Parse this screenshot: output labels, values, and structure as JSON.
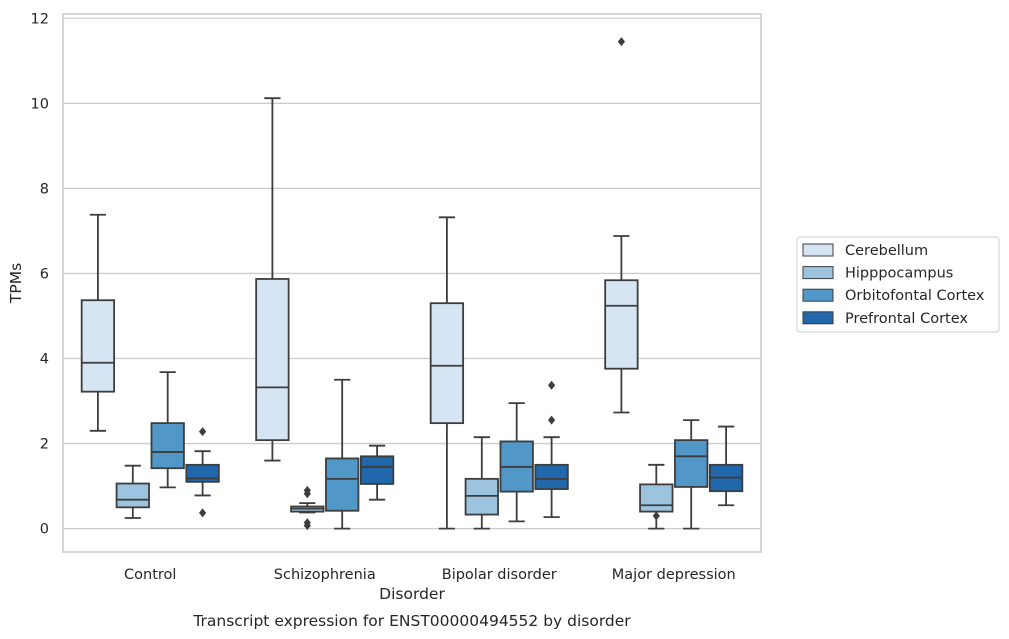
{
  "chart_data": {
    "type": "box",
    "caption": "Transcript expression for ENST00000494552 by disorder",
    "xlabel": "Disorder",
    "ylabel": "TPMs",
    "ylim": [
      -0.55,
      12.1
    ],
    "yticks": [
      0,
      2,
      4,
      6,
      8,
      10,
      12
    ],
    "grid": true,
    "legend_position": "right",
    "categories": [
      "Control",
      "Schizophrenia",
      "Bipolar disorder",
      "Major depression"
    ],
    "series": [
      {
        "name": "Cerebellum",
        "color": "#d6e5f4",
        "boxes": [
          {
            "whisker_low": 2.3,
            "q1": 3.22,
            "median": 3.9,
            "q3": 5.37,
            "whisker_high": 7.38,
            "outliers": []
          },
          {
            "whisker_low": 1.6,
            "q1": 2.08,
            "median": 3.32,
            "q3": 5.87,
            "whisker_high": 10.12,
            "outliers": []
          },
          {
            "whisker_low": 0.0,
            "q1": 2.48,
            "median": 3.83,
            "q3": 5.3,
            "whisker_high": 7.32,
            "outliers": []
          },
          {
            "whisker_low": 2.73,
            "q1": 3.76,
            "median": 5.24,
            "q3": 5.84,
            "whisker_high": 6.88,
            "outliers": [
              11.45
            ]
          }
        ]
      },
      {
        "name": "Hipppocampus",
        "color": "#9cc4de",
        "boxes": [
          {
            "whisker_low": 0.25,
            "q1": 0.5,
            "median": 0.68,
            "q3": 1.06,
            "whisker_high": 1.48,
            "outliers": []
          },
          {
            "whisker_low": 0.38,
            "q1": 0.4,
            "median": 0.47,
            "q3": 0.52,
            "whisker_high": 0.6,
            "outliers": [
              0.9,
              0.82,
              0.14,
              0.07
            ]
          },
          {
            "whisker_low": 0.0,
            "q1": 0.33,
            "median": 0.77,
            "q3": 1.17,
            "whisker_high": 2.15,
            "outliers": []
          },
          {
            "whisker_low": 0.0,
            "q1": 0.4,
            "median": 0.55,
            "q3": 1.04,
            "whisker_high": 1.5,
            "outliers": [
              0.3
            ]
          }
        ]
      },
      {
        "name": "Orbitofontal Cortex",
        "color": "#5197c8",
        "boxes": [
          {
            "whisker_low": 0.97,
            "q1": 1.42,
            "median": 1.8,
            "q3": 2.48,
            "whisker_high": 3.68,
            "outliers": []
          },
          {
            "whisker_low": 0.0,
            "q1": 0.42,
            "median": 1.17,
            "q3": 1.65,
            "whisker_high": 3.5,
            "outliers": []
          },
          {
            "whisker_low": 0.17,
            "q1": 0.87,
            "median": 1.45,
            "q3": 2.05,
            "whisker_high": 2.95,
            "outliers": []
          },
          {
            "whisker_low": 0.0,
            "q1": 0.98,
            "median": 1.7,
            "q3": 2.08,
            "whisker_high": 2.55,
            "outliers": []
          }
        ]
      },
      {
        "name": "Prefrontal Cortex",
        "color": "#2167ac",
        "boxes": [
          {
            "whisker_low": 0.78,
            "q1": 1.1,
            "median": 1.18,
            "q3": 1.5,
            "whisker_high": 1.82,
            "outliers": [
              2.28,
              0.37
            ]
          },
          {
            "whisker_low": 0.68,
            "q1": 1.05,
            "median": 1.45,
            "q3": 1.7,
            "whisker_high": 1.95,
            "outliers": []
          },
          {
            "whisker_low": 0.27,
            "q1": 0.93,
            "median": 1.17,
            "q3": 1.5,
            "whisker_high": 2.15,
            "outliers": [
              3.37,
              2.55
            ]
          },
          {
            "whisker_low": 0.55,
            "q1": 0.88,
            "median": 1.2,
            "q3": 1.5,
            "whisker_high": 2.4,
            "outliers": []
          }
        ]
      }
    ]
  }
}
